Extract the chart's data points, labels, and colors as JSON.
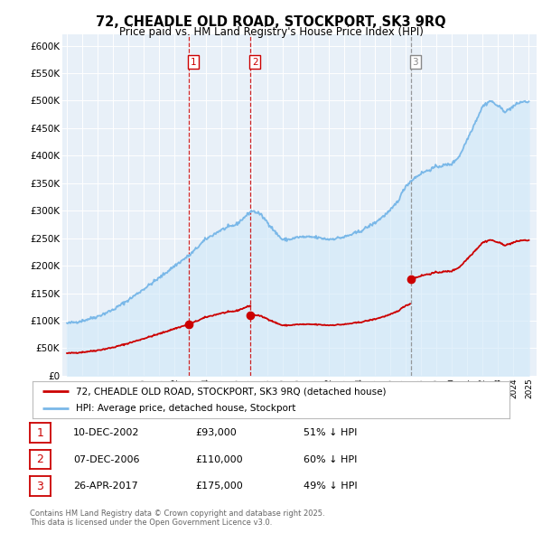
{
  "title": "72, CHEADLE OLD ROAD, STOCKPORT, SK3 9RQ",
  "subtitle": "Price paid vs. HM Land Registry's House Price Index (HPI)",
  "ylabel_ticks": [
    "£0",
    "£50K",
    "£100K",
    "£150K",
    "£200K",
    "£250K",
    "£300K",
    "£350K",
    "£400K",
    "£450K",
    "£500K",
    "£550K",
    "£600K"
  ],
  "ylim": [
    0,
    620000
  ],
  "ytick_values": [
    0,
    50000,
    100000,
    150000,
    200000,
    250000,
    300000,
    350000,
    400000,
    450000,
    500000,
    550000,
    600000
  ],
  "hpi_color": "#7ab8e8",
  "hpi_fill_color": "#d0e8f8",
  "price_color": "#cc0000",
  "sale_dashed_colors": [
    "#cc0000",
    "#cc0000",
    "#888888"
  ],
  "sale_markers": [
    {
      "date_num": 2002.92,
      "price": 93000,
      "label": "1"
    },
    {
      "date_num": 2006.92,
      "price": 110000,
      "label": "2"
    },
    {
      "date_num": 2017.32,
      "price": 175000,
      "label": "3"
    }
  ],
  "legend_entries": [
    "72, CHEADLE OLD ROAD, STOCKPORT, SK3 9RQ (detached house)",
    "HPI: Average price, detached house, Stockport"
  ],
  "table_rows": [
    {
      "num": "1",
      "date": "10-DEC-2002",
      "price": "£93,000",
      "hpi": "51% ↓ HPI"
    },
    {
      "num": "2",
      "date": "07-DEC-2006",
      "price": "£110,000",
      "hpi": "60% ↓ HPI"
    },
    {
      "num": "3",
      "date": "26-APR-2017",
      "price": "£175,000",
      "hpi": "49% ↓ HPI"
    }
  ],
  "footnote": "Contains HM Land Registry data © Crown copyright and database right 2025.\nThis data is licensed under the Open Government Licence v3.0.",
  "bg_color": "#ffffff",
  "plot_bg_color": "#e8f0f8"
}
